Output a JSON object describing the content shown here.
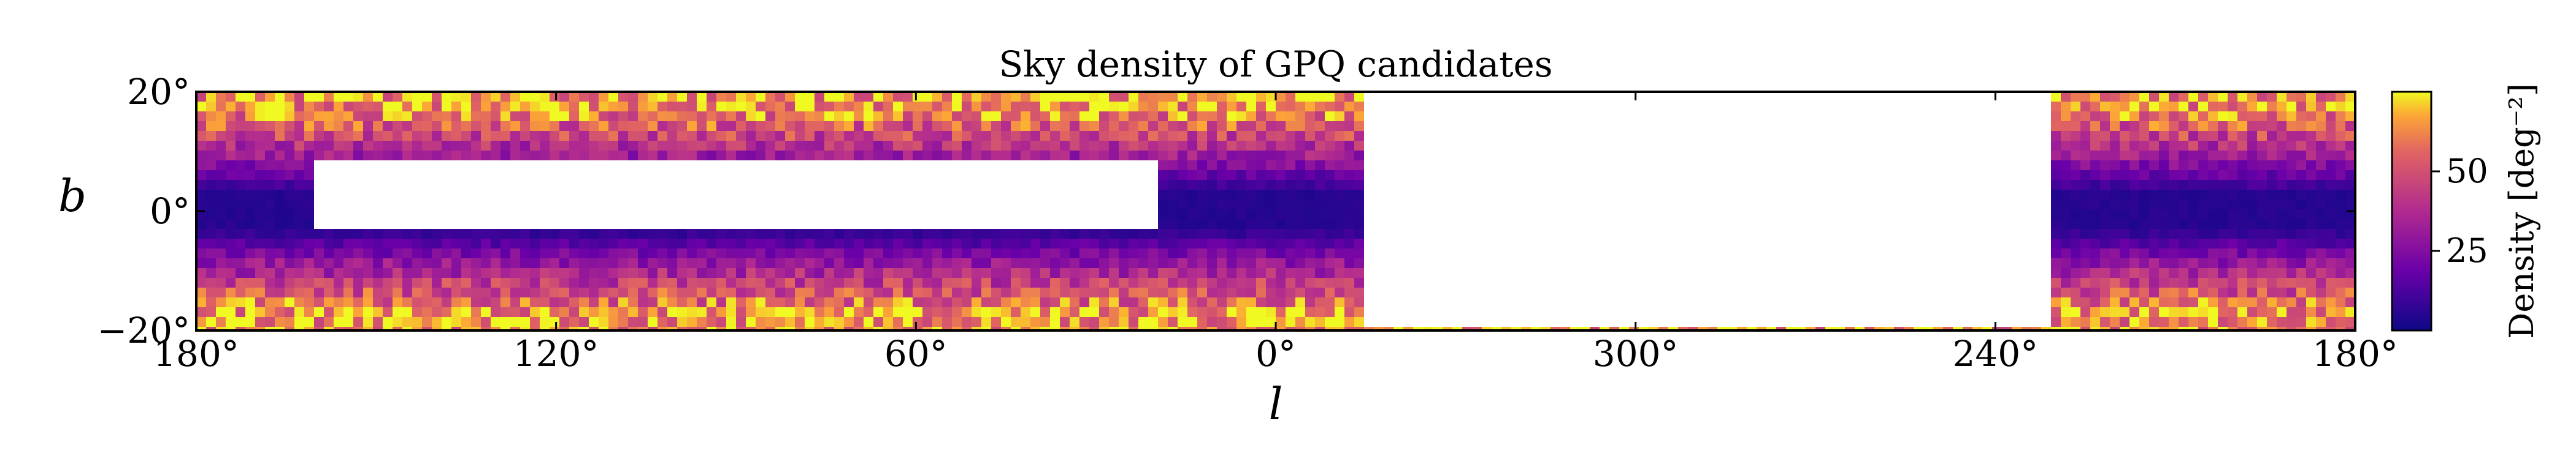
{
  "chart_data": {
    "type": "heatmap",
    "title": "Sky density of GPQ candidates",
    "xlabel": "l",
    "ylabel": "b",
    "x_ticks": [
      "180°",
      "120°",
      "60°",
      "0°",
      "300°",
      "240°",
      "180°"
    ],
    "x_tick_values": [
      180,
      120,
      60,
      0,
      300,
      240,
      180
    ],
    "y_ticks": [
      "20°",
      "0°",
      "−20°"
    ],
    "y_tick_values": [
      20,
      0,
      -20
    ],
    "xlim": [
      180,
      -180
    ],
    "ylim": [
      -20,
      20
    ],
    "colorbar": {
      "label": "Density [deg⁻²]",
      "ticks": [
        "25",
        "50"
      ],
      "tick_values": [
        25,
        50
      ],
      "range": [
        0,
        75
      ],
      "colormap": "plasma"
    },
    "empty_regions": [
      {
        "description": "no data",
        "l_range": [
          -15,
          -130
        ],
        "b_range": [
          -20,
          20
        ]
      },
      {
        "description": "no data near plane",
        "l_range": [
          160,
          20
        ],
        "b_range": [
          -3,
          8
        ]
      }
    ],
    "density_profile": {
      "low_density_band_b": [
        -5,
        5
      ],
      "high_density_b": [
        -20,
        -12,
        12,
        20
      ],
      "low_value": 5,
      "high_value": 65
    }
  }
}
